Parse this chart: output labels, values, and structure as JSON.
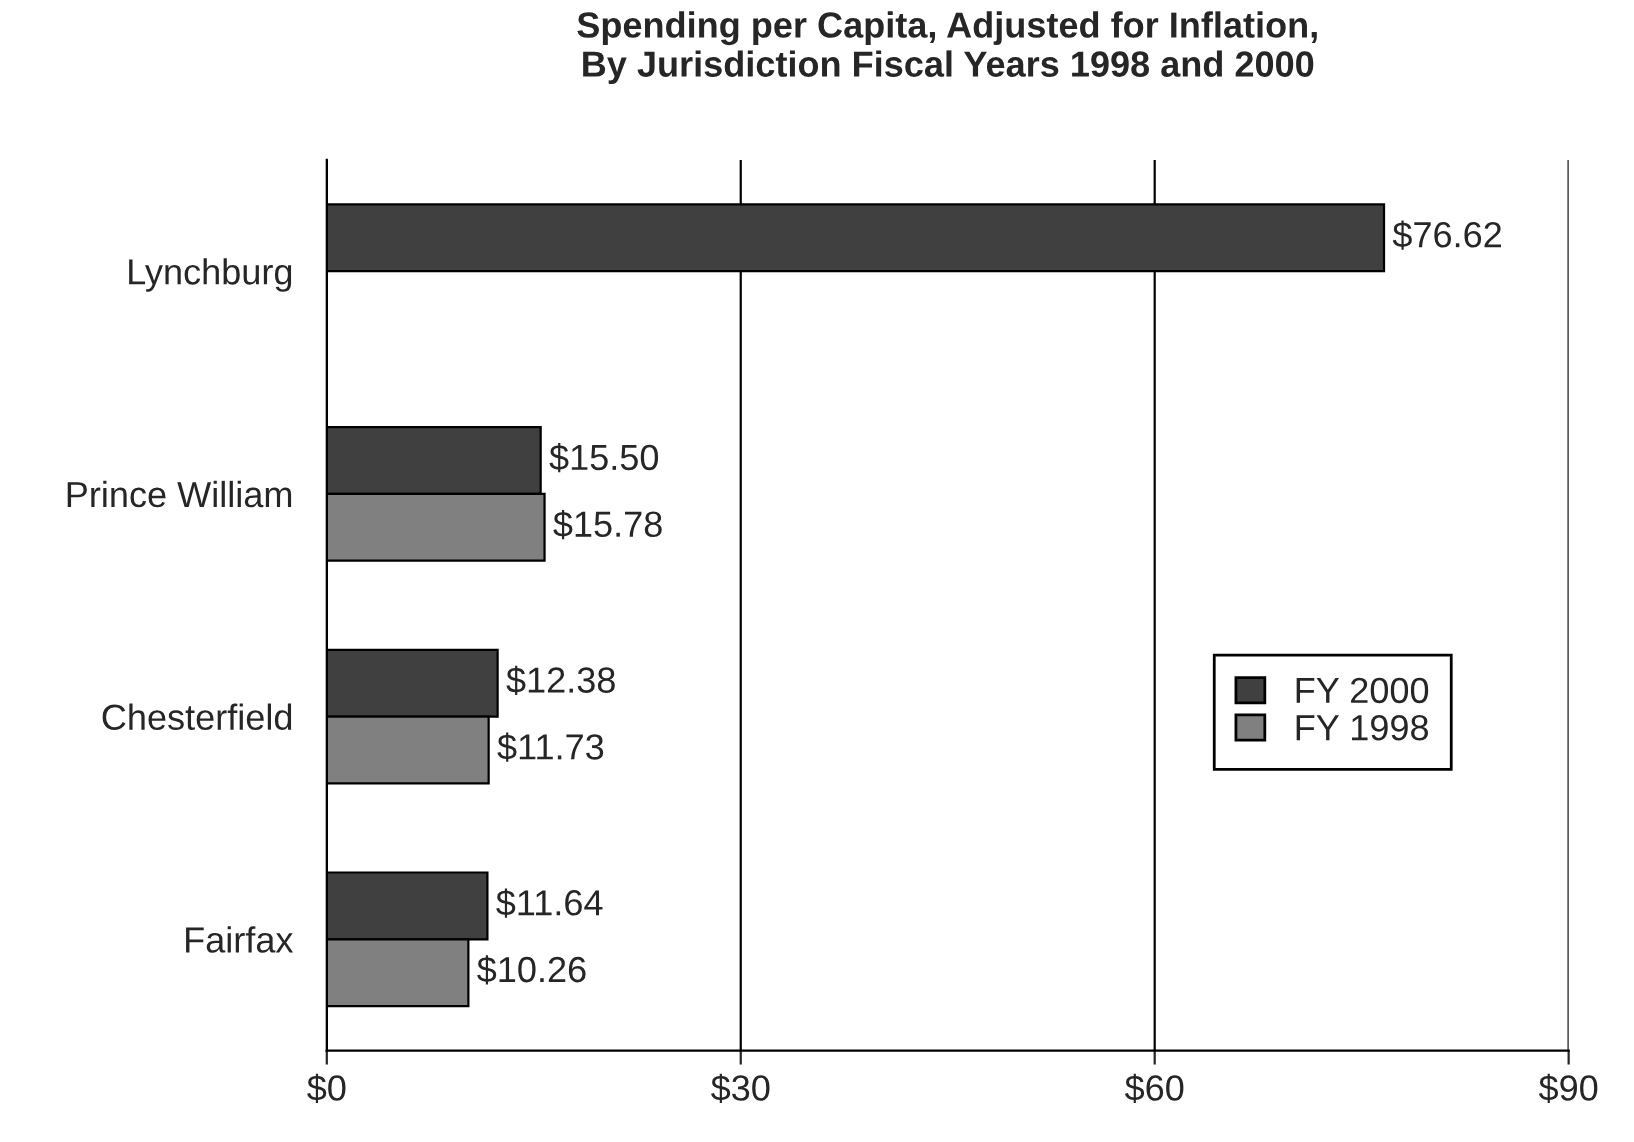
{
  "chart_data": {
    "type": "bar",
    "orientation": "horizontal",
    "title": "Spending per Capita, Adjusted for Inflation,\nBy Jurisdiction Fiscal Years 1998 and 2000",
    "categories": [
      "Lynchburg",
      "Prince William",
      "Chesterfield",
      "Fairfax"
    ],
    "series": [
      {
        "name": "FY 2000",
        "color": "#404040",
        "values": [
          76.62,
          15.5,
          12.38,
          11.64
        ],
        "value_labels": [
          "$76.62",
          "$15.50",
          "$12.38",
          "$11.64"
        ]
      },
      {
        "name": "FY 1998",
        "color": "#808080",
        "values": [
          null,
          15.78,
          11.73,
          10.26
        ],
        "value_labels": [
          null,
          "$15.78",
          "$11.73",
          "$10.26"
        ]
      }
    ],
    "xlim": [
      0,
      90
    ],
    "xticks": [
      {
        "value": 0,
        "label": "$0"
      },
      {
        "value": 30,
        "label": "$30"
      },
      {
        "value": 60,
        "label": "$60"
      },
      {
        "value": 90,
        "label": "$90"
      }
    ],
    "grid": "x",
    "legend": "right"
  }
}
